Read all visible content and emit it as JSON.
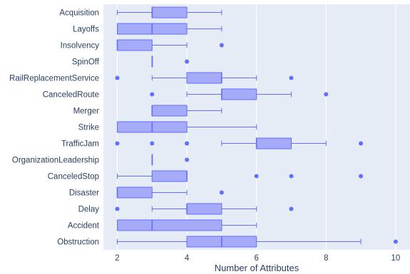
{
  "chart_data": {
    "type": "box",
    "orientation": "horizontal",
    "xlabel": "Number of Attributes",
    "ylabel": "",
    "xlim": [
      1.5,
      10.4
    ],
    "xticks": [
      2,
      4,
      6,
      8,
      10
    ],
    "grid": true,
    "legend": "none",
    "colors": {
      "plot_bg": "#e5ecf6",
      "grid": "#ffffff",
      "box_fill": "#a5abf8",
      "box_line": "#636efa",
      "text": "#2a3f5f"
    },
    "categories": [
      {
        "label": "Acquisition",
        "min": 2,
        "q1": 3,
        "median": 3,
        "q3": 4,
        "max": 5,
        "outliers": []
      },
      {
        "label": "Layoffs",
        "min": 2,
        "q1": 2,
        "median": 3,
        "q3": 4,
        "max": 5,
        "outliers": []
      },
      {
        "label": "Insolvency",
        "min": 2,
        "q1": 2,
        "median": 2,
        "q3": 3,
        "max": 4,
        "outliers": [
          5
        ]
      },
      {
        "label": "SpinOff",
        "min": 3,
        "q1": 3,
        "median": 3,
        "q3": 3,
        "max": 3,
        "outliers": [
          4
        ]
      },
      {
        "label": "RailReplacementService",
        "min": 3,
        "q1": 4,
        "median": 5,
        "q3": 5,
        "max": 6,
        "outliers": [
          2,
          7
        ]
      },
      {
        "label": "CanceledRoute",
        "min": 4,
        "q1": 5,
        "median": 5,
        "q3": 6,
        "max": 7,
        "outliers": [
          3,
          8
        ]
      },
      {
        "label": "Merger",
        "min": 3,
        "q1": 3,
        "median": 3,
        "q3": 4,
        "max": 5,
        "outliers": []
      },
      {
        "label": "Strike",
        "min": 2,
        "q1": 2,
        "median": 3,
        "q3": 4,
        "max": 6,
        "outliers": []
      },
      {
        "label": "TrafficJam",
        "min": 5,
        "q1": 6,
        "median": 6,
        "q3": 7,
        "max": 8,
        "outliers": [
          2,
          3,
          4,
          9
        ]
      },
      {
        "label": "OrganizationLeadership",
        "min": 3,
        "q1": 3,
        "median": 3,
        "q3": 3,
        "max": 3,
        "outliers": [
          4
        ]
      },
      {
        "label": "CanceledStop",
        "min": 2,
        "q1": 3,
        "median": 4,
        "q3": 4,
        "max": 4,
        "outliers": [
          6,
          7,
          9
        ]
      },
      {
        "label": "Disaster",
        "min": 2,
        "q1": 2,
        "median": 2,
        "q3": 3,
        "max": 4,
        "outliers": [
          5
        ]
      },
      {
        "label": "Delay",
        "min": 3,
        "q1": 4,
        "median": 4,
        "q3": 5,
        "max": 6,
        "outliers": [
          2,
          7
        ]
      },
      {
        "label": "Accident",
        "min": 2,
        "q1": 2,
        "median": 3,
        "q3": 5,
        "max": 6,
        "outliers": []
      },
      {
        "label": "Obstruction",
        "min": 2,
        "q1": 4,
        "median": 5,
        "q3": 6,
        "max": 9,
        "outliers": [
          10
        ]
      }
    ]
  }
}
